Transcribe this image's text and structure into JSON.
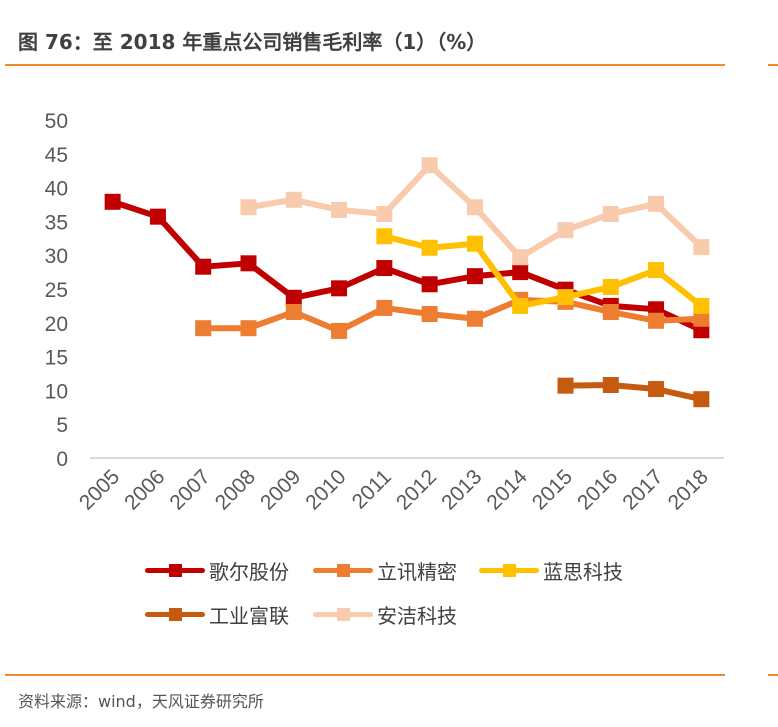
{
  "header": {
    "title": "图 76：至 2018 年重点公司销售毛利率（1）（%）"
  },
  "footer": {
    "source": "资料来源：wind，天风证券研究所"
  },
  "colors": {
    "rule": "#f08a2c",
    "axis": "#d9d9d9",
    "tick_text": "#595959"
  },
  "chart_data": {
    "type": "line",
    "title": "至 2018 年重点公司销售毛利率（1）（%）",
    "xlabel": "",
    "ylabel": "",
    "x": [
      "2005",
      "2006",
      "2007",
      "2008",
      "2009",
      "2010",
      "2011",
      "2012",
      "2013",
      "2014",
      "2015",
      "2016",
      "2017",
      "2018"
    ],
    "ylim": [
      0,
      50
    ],
    "yticks": [
      0,
      5,
      10,
      15,
      20,
      25,
      30,
      35,
      40,
      45,
      50
    ],
    "grid": false,
    "legend_position": "bottom",
    "series": [
      {
        "name": "歌尔股份",
        "color": "#c00000",
        "values": [
          37.9,
          35.7,
          28.3,
          28.8,
          23.7,
          25.1,
          28.1,
          25.7,
          26.9,
          27.5,
          24.9,
          22.5,
          22.0,
          18.9
        ]
      },
      {
        "name": "立讯精密",
        "color": "#ed7d31",
        "values": [
          null,
          null,
          19.2,
          19.2,
          21.6,
          18.8,
          22.2,
          21.3,
          20.6,
          23.4,
          23.1,
          21.6,
          20.3,
          20.6
        ]
      },
      {
        "name": "蓝思科技",
        "color": "#ffc000",
        "values": [
          null,
          null,
          null,
          null,
          null,
          null,
          32.8,
          31.1,
          31.7,
          22.5,
          23.8,
          25.3,
          27.8,
          22.5
        ]
      },
      {
        "name": "工业富联",
        "color": "#c55a11",
        "values": [
          null,
          null,
          null,
          null,
          null,
          null,
          null,
          null,
          null,
          null,
          10.7,
          10.8,
          10.2,
          8.7
        ]
      },
      {
        "name": "安洁科技",
        "color": "#f8cbad",
        "values": [
          null,
          null,
          null,
          37.1,
          38.2,
          36.7,
          36.1,
          43.3,
          37.1,
          29.7,
          33.7,
          36.1,
          37.6,
          31.2
        ]
      }
    ]
  }
}
